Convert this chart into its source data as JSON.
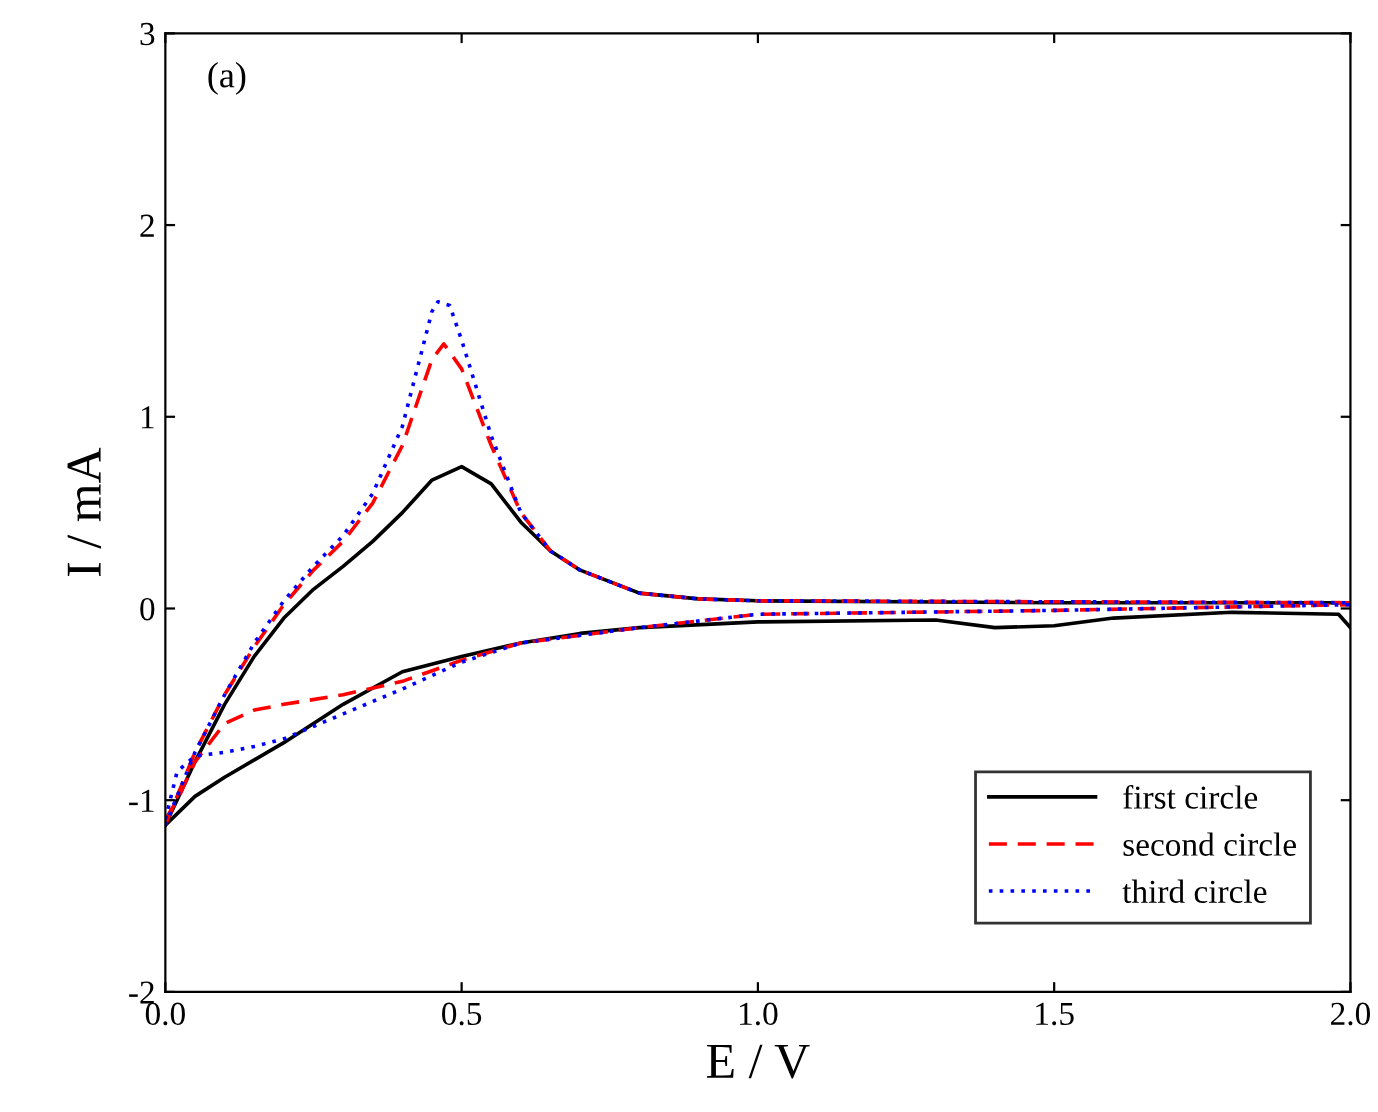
{
  "chart_data": {
    "type": "line",
    "xlabel": "E / V",
    "ylabel": "I / mA",
    "annotations": [
      "(a)"
    ],
    "xlim": [
      0,
      2
    ],
    "ylim": [
      -2,
      3
    ],
    "xticks": [
      {
        "value": 0,
        "label": "0.0"
      },
      {
        "value": 0.5,
        "label": "0.5"
      },
      {
        "value": 1,
        "label": "1.0"
      },
      {
        "value": 1.5,
        "label": "1.5"
      },
      {
        "value": 2,
        "label": "2.0"
      }
    ],
    "yticks": [
      -2,
      -1,
      0,
      1,
      2,
      3
    ],
    "grid": false,
    "legend": "bottom right",
    "marker": "none",
    "series": [
      {
        "name": "first circle",
        "color": "#000000",
        "line_style": "solid",
        "x": [
          0.0,
          0.05,
          0.1,
          0.15,
          0.2,
          0.25,
          0.3,
          0.35,
          0.4,
          0.45,
          0.5,
          0.55,
          0.6,
          0.65,
          0.7,
          0.8,
          0.9,
          1.0,
          1.5,
          2.0
        ],
        "values": [
          -1.13,
          -0.8,
          -0.5,
          -0.25,
          -0.05,
          0.1,
          0.22,
          0.35,
          0.5,
          0.67,
          0.74,
          0.65,
          0.45,
          0.3,
          0.2,
          0.08,
          0.05,
          0.04,
          0.03,
          0.03
        ]
      },
      {
        "color": "#000000",
        "line_style": "solid",
        "x": [
          0.0,
          0.05,
          0.1,
          0.2,
          0.3,
          0.4,
          0.5,
          0.6,
          0.7,
          0.8,
          1.0,
          1.3,
          1.4,
          1.5,
          1.6,
          1.8,
          1.98,
          2.0
        ],
        "values": [
          -1.13,
          -0.98,
          -0.88,
          -0.7,
          -0.5,
          -0.33,
          -0.25,
          -0.18,
          -0.13,
          -0.1,
          -0.07,
          -0.06,
          -0.1,
          -0.09,
          -0.05,
          -0.02,
          -0.03,
          -0.1
        ]
      },
      {
        "name": "second circle",
        "color": "#ff0000",
        "line_style": "dashed",
        "x": [
          0.0,
          0.05,
          0.1,
          0.15,
          0.2,
          0.25,
          0.3,
          0.35,
          0.4,
          0.45,
          0.47,
          0.5,
          0.55,
          0.6,
          0.65,
          0.7,
          0.8,
          0.9,
          1.0,
          2.0
        ],
        "values": [
          -1.13,
          -0.75,
          -0.45,
          -0.2,
          0.02,
          0.2,
          0.35,
          0.55,
          0.85,
          1.3,
          1.38,
          1.25,
          0.85,
          0.5,
          0.3,
          0.2,
          0.08,
          0.05,
          0.04,
          0.03
        ]
      },
      {
        "color": "#ff0000",
        "line_style": "dashed",
        "x": [
          0.0,
          0.02,
          0.05,
          0.1,
          0.15,
          0.2,
          0.3,
          0.4,
          0.5,
          0.6,
          0.8,
          1.0,
          1.5,
          2.0
        ],
        "values": [
          -1.1,
          -1.0,
          -0.8,
          -0.6,
          -0.53,
          -0.5,
          -0.45,
          -0.38,
          -0.27,
          -0.18,
          -0.1,
          -0.03,
          -0.01,
          0.02
        ]
      },
      {
        "name": "third circle",
        "color": "#0000ff",
        "line_style": "dotted",
        "x": [
          0.0,
          0.05,
          0.1,
          0.15,
          0.2,
          0.25,
          0.3,
          0.35,
          0.4,
          0.45,
          0.46,
          0.48,
          0.5,
          0.55,
          0.6,
          0.65,
          0.7,
          0.8,
          0.9,
          1.0,
          2.0
        ],
        "values": [
          -1.13,
          -0.75,
          -0.45,
          -0.18,
          0.04,
          0.22,
          0.38,
          0.6,
          0.95,
          1.55,
          1.6,
          1.58,
          1.4,
          0.9,
          0.5,
          0.3,
          0.2,
          0.08,
          0.05,
          0.04,
          0.03
        ]
      },
      {
        "color": "#0000ff",
        "line_style": "dotted",
        "x": [
          0.0,
          0.02,
          0.05,
          0.1,
          0.15,
          0.2,
          0.3,
          0.4,
          0.5,
          0.6,
          0.8,
          1.0,
          1.5,
          2.0
        ],
        "values": [
          -1.1,
          -0.85,
          -0.77,
          -0.75,
          -0.72,
          -0.68,
          -0.55,
          -0.42,
          -0.28,
          -0.18,
          -0.1,
          -0.03,
          -0.01,
          0.02
        ]
      }
    ]
  }
}
